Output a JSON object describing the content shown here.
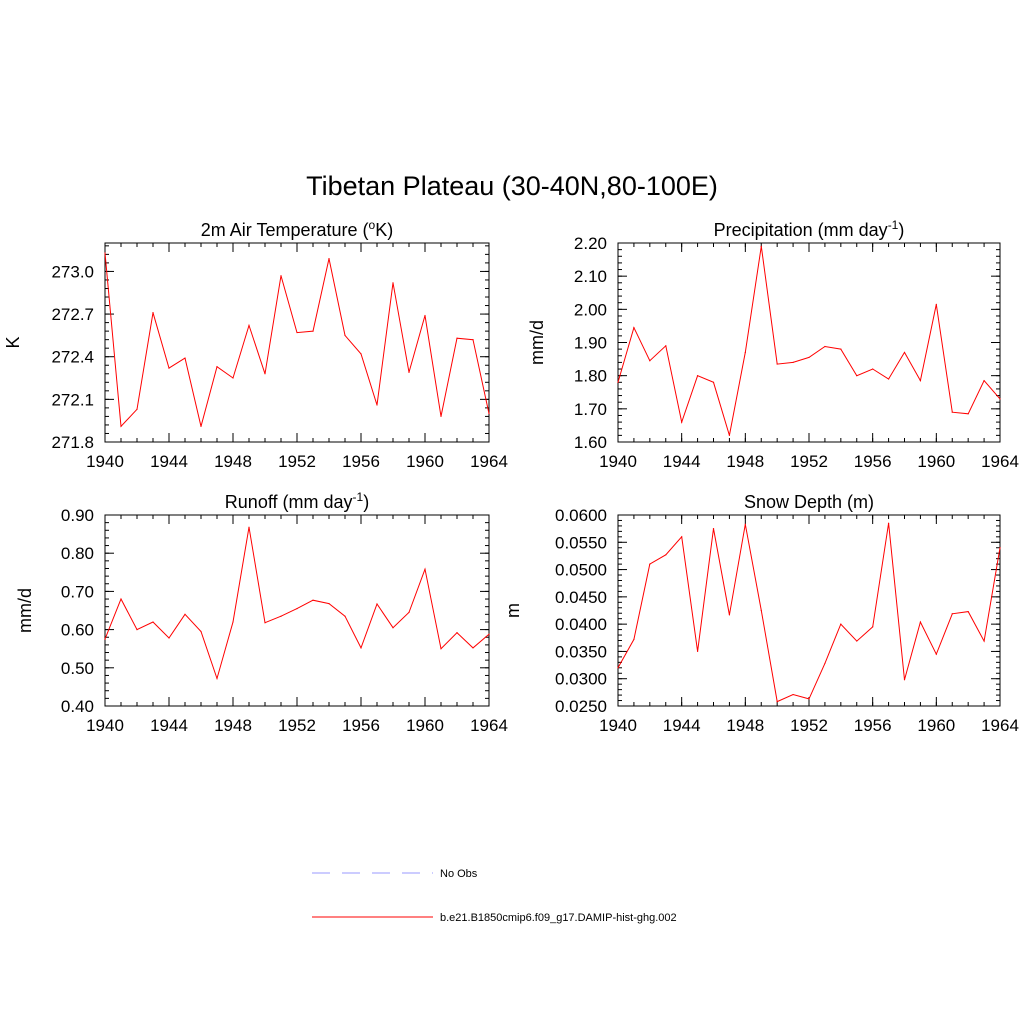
{
  "figure": {
    "title": "Tibetan Plateau (30-40N,80-100E)"
  },
  "colors": {
    "model_line": "#ff0000",
    "obs_line": "#9999ff",
    "axes": "#000000"
  },
  "legend": {
    "entries": [
      {
        "label": "No Obs",
        "style": "dashed",
        "color": "#9999ff"
      },
      {
        "label": "b.e21.B1850cmip6.f09_g17.DAMIP-hist-ghg.002",
        "style": "solid",
        "color": "#ff0000"
      }
    ]
  },
  "chart_data": [
    {
      "type": "line",
      "title_main": "2m Air Temperature (",
      "title_sup": "o",
      "title_tail": "K)",
      "ylabel": "K",
      "xlabel": "",
      "xlim": [
        1940,
        1964
      ],
      "ylim": [
        271.8,
        273.2
      ],
      "xticks": [
        1940,
        1944,
        1948,
        1952,
        1956,
        1960,
        1964
      ],
      "xtick_labels": [
        "1940",
        "1944",
        "1948",
        "1952",
        "1956",
        "1960",
        "1964"
      ],
      "yticks": [
        271.8,
        272.1,
        272.4,
        272.7,
        273.0
      ],
      "ytick_labels": [
        "271.8",
        "272.1",
        "272.4",
        "272.7",
        "273.0"
      ],
      "grid": false,
      "x": [
        1940,
        1941,
        1942,
        1943,
        1944,
        1945,
        1946,
        1947,
        1948,
        1949,
        1950,
        1951,
        1952,
        1953,
        1954,
        1955,
        1956,
        1957,
        1958,
        1959,
        1960,
        1961,
        1962,
        1963,
        1964
      ],
      "series": [
        {
          "values": [
            273.13,
            271.91,
            272.03,
            272.71,
            272.32,
            272.39,
            271.91,
            272.33,
            272.25,
            272.62,
            272.28,
            272.97,
            272.57,
            272.58,
            273.09,
            272.55,
            272.42,
            272.06,
            272.92,
            272.29,
            272.69,
            271.98,
            272.53,
            272.52,
            272.0
          ]
        }
      ]
    },
    {
      "type": "line",
      "title_main": "Precipitation (mm day",
      "title_sup": "-1",
      "title_tail": ")",
      "ylabel": "mm/d",
      "xlabel": "",
      "xlim": [
        1940,
        1964
      ],
      "ylim": [
        1.6,
        2.2
      ],
      "xticks": [
        1940,
        1944,
        1948,
        1952,
        1956,
        1960,
        1964
      ],
      "xtick_labels": [
        "1940",
        "1944",
        "1948",
        "1952",
        "1956",
        "1960",
        "1964"
      ],
      "yticks": [
        1.6,
        1.7,
        1.8,
        1.9,
        2.0,
        2.1,
        2.2
      ],
      "ytick_labels": [
        "1.60",
        "1.70",
        "1.80",
        "1.90",
        "2.00",
        "2.10",
        "2.20"
      ],
      "grid": false,
      "x": [
        1940,
        1941,
        1942,
        1943,
        1944,
        1945,
        1946,
        1947,
        1948,
        1949,
        1950,
        1951,
        1952,
        1953,
        1954,
        1955,
        1956,
        1957,
        1958,
        1959,
        1960,
        1961,
        1962,
        1963,
        1964
      ],
      "series": [
        {
          "values": [
            1.78,
            1.945,
            1.845,
            1.89,
            1.66,
            1.8,
            1.78,
            1.62,
            1.87,
            2.19,
            1.835,
            1.84,
            1.855,
            1.888,
            1.88,
            1.8,
            1.82,
            1.79,
            1.87,
            1.785,
            2.015,
            1.69,
            1.685,
            1.785,
            1.73
          ]
        }
      ]
    },
    {
      "type": "line",
      "title_main": "Runoff (mm day",
      "title_sup": "-1",
      "title_tail": ")",
      "ylabel": "mm/d",
      "xlabel": "",
      "xlim": [
        1940,
        1964
      ],
      "ylim": [
        0.4,
        0.9
      ],
      "xticks": [
        1940,
        1944,
        1948,
        1952,
        1956,
        1960,
        1964
      ],
      "xtick_labels": [
        "1940",
        "1944",
        "1948",
        "1952",
        "1956",
        "1960",
        "1964"
      ],
      "yticks": [
        0.4,
        0.5,
        0.6,
        0.7,
        0.8,
        0.9
      ],
      "ytick_labels": [
        "0.40",
        "0.50",
        "0.60",
        "0.70",
        "0.80",
        "0.90"
      ],
      "grid": false,
      "x": [
        1940,
        1941,
        1942,
        1943,
        1944,
        1945,
        1946,
        1947,
        1948,
        1949,
        1950,
        1951,
        1952,
        1953,
        1954,
        1955,
        1956,
        1957,
        1958,
        1959,
        1960,
        1961,
        1962,
        1963,
        1964
      ],
      "series": [
        {
          "values": [
            0.575,
            0.68,
            0.6,
            0.62,
            0.578,
            0.64,
            0.595,
            0.472,
            0.62,
            0.868,
            0.618,
            0.635,
            0.655,
            0.677,
            0.668,
            0.635,
            0.552,
            0.667,
            0.605,
            0.645,
            0.758,
            0.55,
            0.592,
            0.552,
            0.588
          ]
        }
      ]
    },
    {
      "type": "line",
      "title_main": "Snow Depth (m)",
      "title_sup": "",
      "title_tail": "",
      "ylabel": "m",
      "xlabel": "",
      "xlim": [
        1940,
        1964
      ],
      "ylim": [
        0.025,
        0.06
      ],
      "xticks": [
        1940,
        1944,
        1948,
        1952,
        1956,
        1960,
        1964
      ],
      "xtick_labels": [
        "1940",
        "1944",
        "1948",
        "1952",
        "1956",
        "1960",
        "1964"
      ],
      "yticks": [
        0.025,
        0.03,
        0.035,
        0.04,
        0.045,
        0.05,
        0.055,
        0.06
      ],
      "ytick_labels": [
        "0.0250",
        "0.0300",
        "0.0350",
        "0.0400",
        "0.0450",
        "0.0500",
        "0.0550",
        "0.0600"
      ],
      "grid": false,
      "x": [
        1940,
        1941,
        1942,
        1943,
        1944,
        1945,
        1946,
        1947,
        1948,
        1949,
        1950,
        1951,
        1952,
        1953,
        1954,
        1955,
        1956,
        1957,
        1958,
        1959,
        1960,
        1961,
        1962,
        1963,
        1964
      ],
      "series": [
        {
          "values": [
            0.032,
            0.0372,
            0.051,
            0.0527,
            0.056,
            0.035,
            0.0575,
            0.0417,
            0.0583,
            0.0425,
            0.0258,
            0.0271,
            0.0263,
            0.0328,
            0.04,
            0.0369,
            0.0395,
            0.0585,
            0.0298,
            0.0404,
            0.0345,
            0.0419,
            0.0423,
            0.0369,
            0.054
          ]
        }
      ]
    }
  ]
}
